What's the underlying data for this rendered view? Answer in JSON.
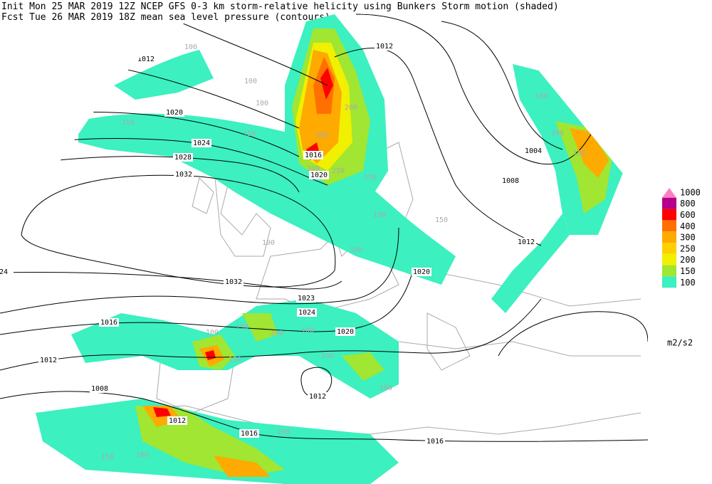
{
  "header": {
    "line1": "Init  Mon 25 MAR 2019 12Z  NCEP GFS 0-3 km storm-relative helicity using Bunkers Storm motion (shaded)",
    "line2": "Fcst Tue 26 MAR 2019 18Z  mean sea level pressure (contours)"
  },
  "legend": {
    "levels": [
      {
        "label": 1000,
        "color": "#ff80c0"
      },
      {
        "label": 800,
        "color": "#b4008c"
      },
      {
        "label": 600,
        "color": "#ff0000"
      },
      {
        "label": 400,
        "color": "#ff7000"
      },
      {
        "label": 300,
        "color": "#ffaa00"
      },
      {
        "label": 250,
        "color": "#ffd000"
      },
      {
        "label": 200,
        "color": "#f0f000"
      },
      {
        "label": 150,
        "color": "#a0e632"
      },
      {
        "label": 100,
        "color": "#3cf0c0"
      }
    ],
    "unit": "m2/s2"
  },
  "isobar_labels": [
    1012,
    1020,
    1024,
    1028,
    1032,
    1012,
    1016,
    1020,
    1004,
    1008,
    1012,
    1020,
    1032,
    1023,
    1024,
    1020,
    1016,
    1012,
    1008,
    1012,
    1016,
    1016,
    1012,
    24
  ],
  "shading_labels": [
    100,
    100,
    150,
    150,
    200,
    300,
    200,
    250,
    150,
    150,
    100,
    100,
    200,
    150,
    150,
    100,
    100,
    100,
    150,
    200,
    100,
    150,
    100,
    100,
    200,
    150,
    100
  ]
}
